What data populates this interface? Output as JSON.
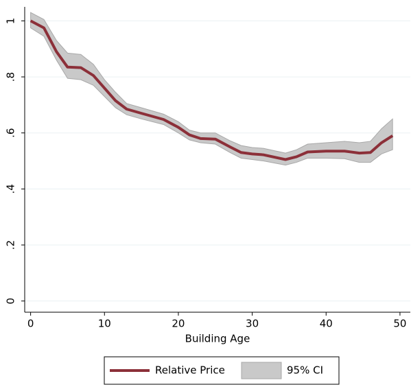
{
  "chart_data": {
    "type": "line",
    "xlabel": "Building Age",
    "x": [
      0,
      1.8,
      3.5,
      5,
      6.8,
      8.5,
      10,
      11.5,
      13,
      15,
      18,
      20,
      21.5,
      23,
      25,
      27,
      28.5,
      30,
      31.5,
      34.5,
      36,
      37.5,
      40,
      42.5,
      44.5,
      46,
      47.5,
      49
    ],
    "series": [
      {
        "name": "Relative Price",
        "color": "#8c3039",
        "values": [
          1.0,
          0.975,
          0.89,
          0.835,
          0.833,
          0.805,
          0.76,
          0.715,
          0.685,
          0.67,
          0.648,
          0.62,
          0.593,
          0.58,
          0.578,
          0.55,
          0.53,
          0.525,
          0.522,
          0.505,
          0.515,
          0.532,
          0.535,
          0.535,
          0.528,
          0.53,
          0.565,
          0.59
        ]
      }
    ],
    "ci": {
      "name": "95% CI",
      "color": "#c9c9c9",
      "upper": [
        1.03,
        1.005,
        0.93,
        0.885,
        0.88,
        0.845,
        0.79,
        0.745,
        0.705,
        0.69,
        0.667,
        0.64,
        0.61,
        0.6,
        0.6,
        0.572,
        0.555,
        0.548,
        0.545,
        0.528,
        0.54,
        0.56,
        0.565,
        0.57,
        0.565,
        0.57,
        0.615,
        0.65
      ],
      "lower": [
        0.975,
        0.945,
        0.86,
        0.795,
        0.79,
        0.77,
        0.73,
        0.69,
        0.665,
        0.65,
        0.63,
        0.6,
        0.575,
        0.565,
        0.56,
        0.53,
        0.51,
        0.505,
        0.5,
        0.485,
        0.495,
        0.51,
        0.51,
        0.508,
        0.495,
        0.495,
        0.525,
        0.54
      ]
    },
    "xlim": [
      -0.8,
      51.4
    ],
    "xticks": [
      0,
      10,
      20,
      30,
      40,
      50
    ],
    "ylim": [
      -0.04,
      1.05
    ],
    "yticks": [
      0,
      {
        "value": 0.2,
        "label": ".2"
      },
      {
        "value": 0.4,
        "label": ".4"
      },
      {
        "value": 0.6,
        "label": ".6"
      },
      {
        "value": 0.8,
        "label": ".8"
      },
      1
    ],
    "grid": true
  }
}
